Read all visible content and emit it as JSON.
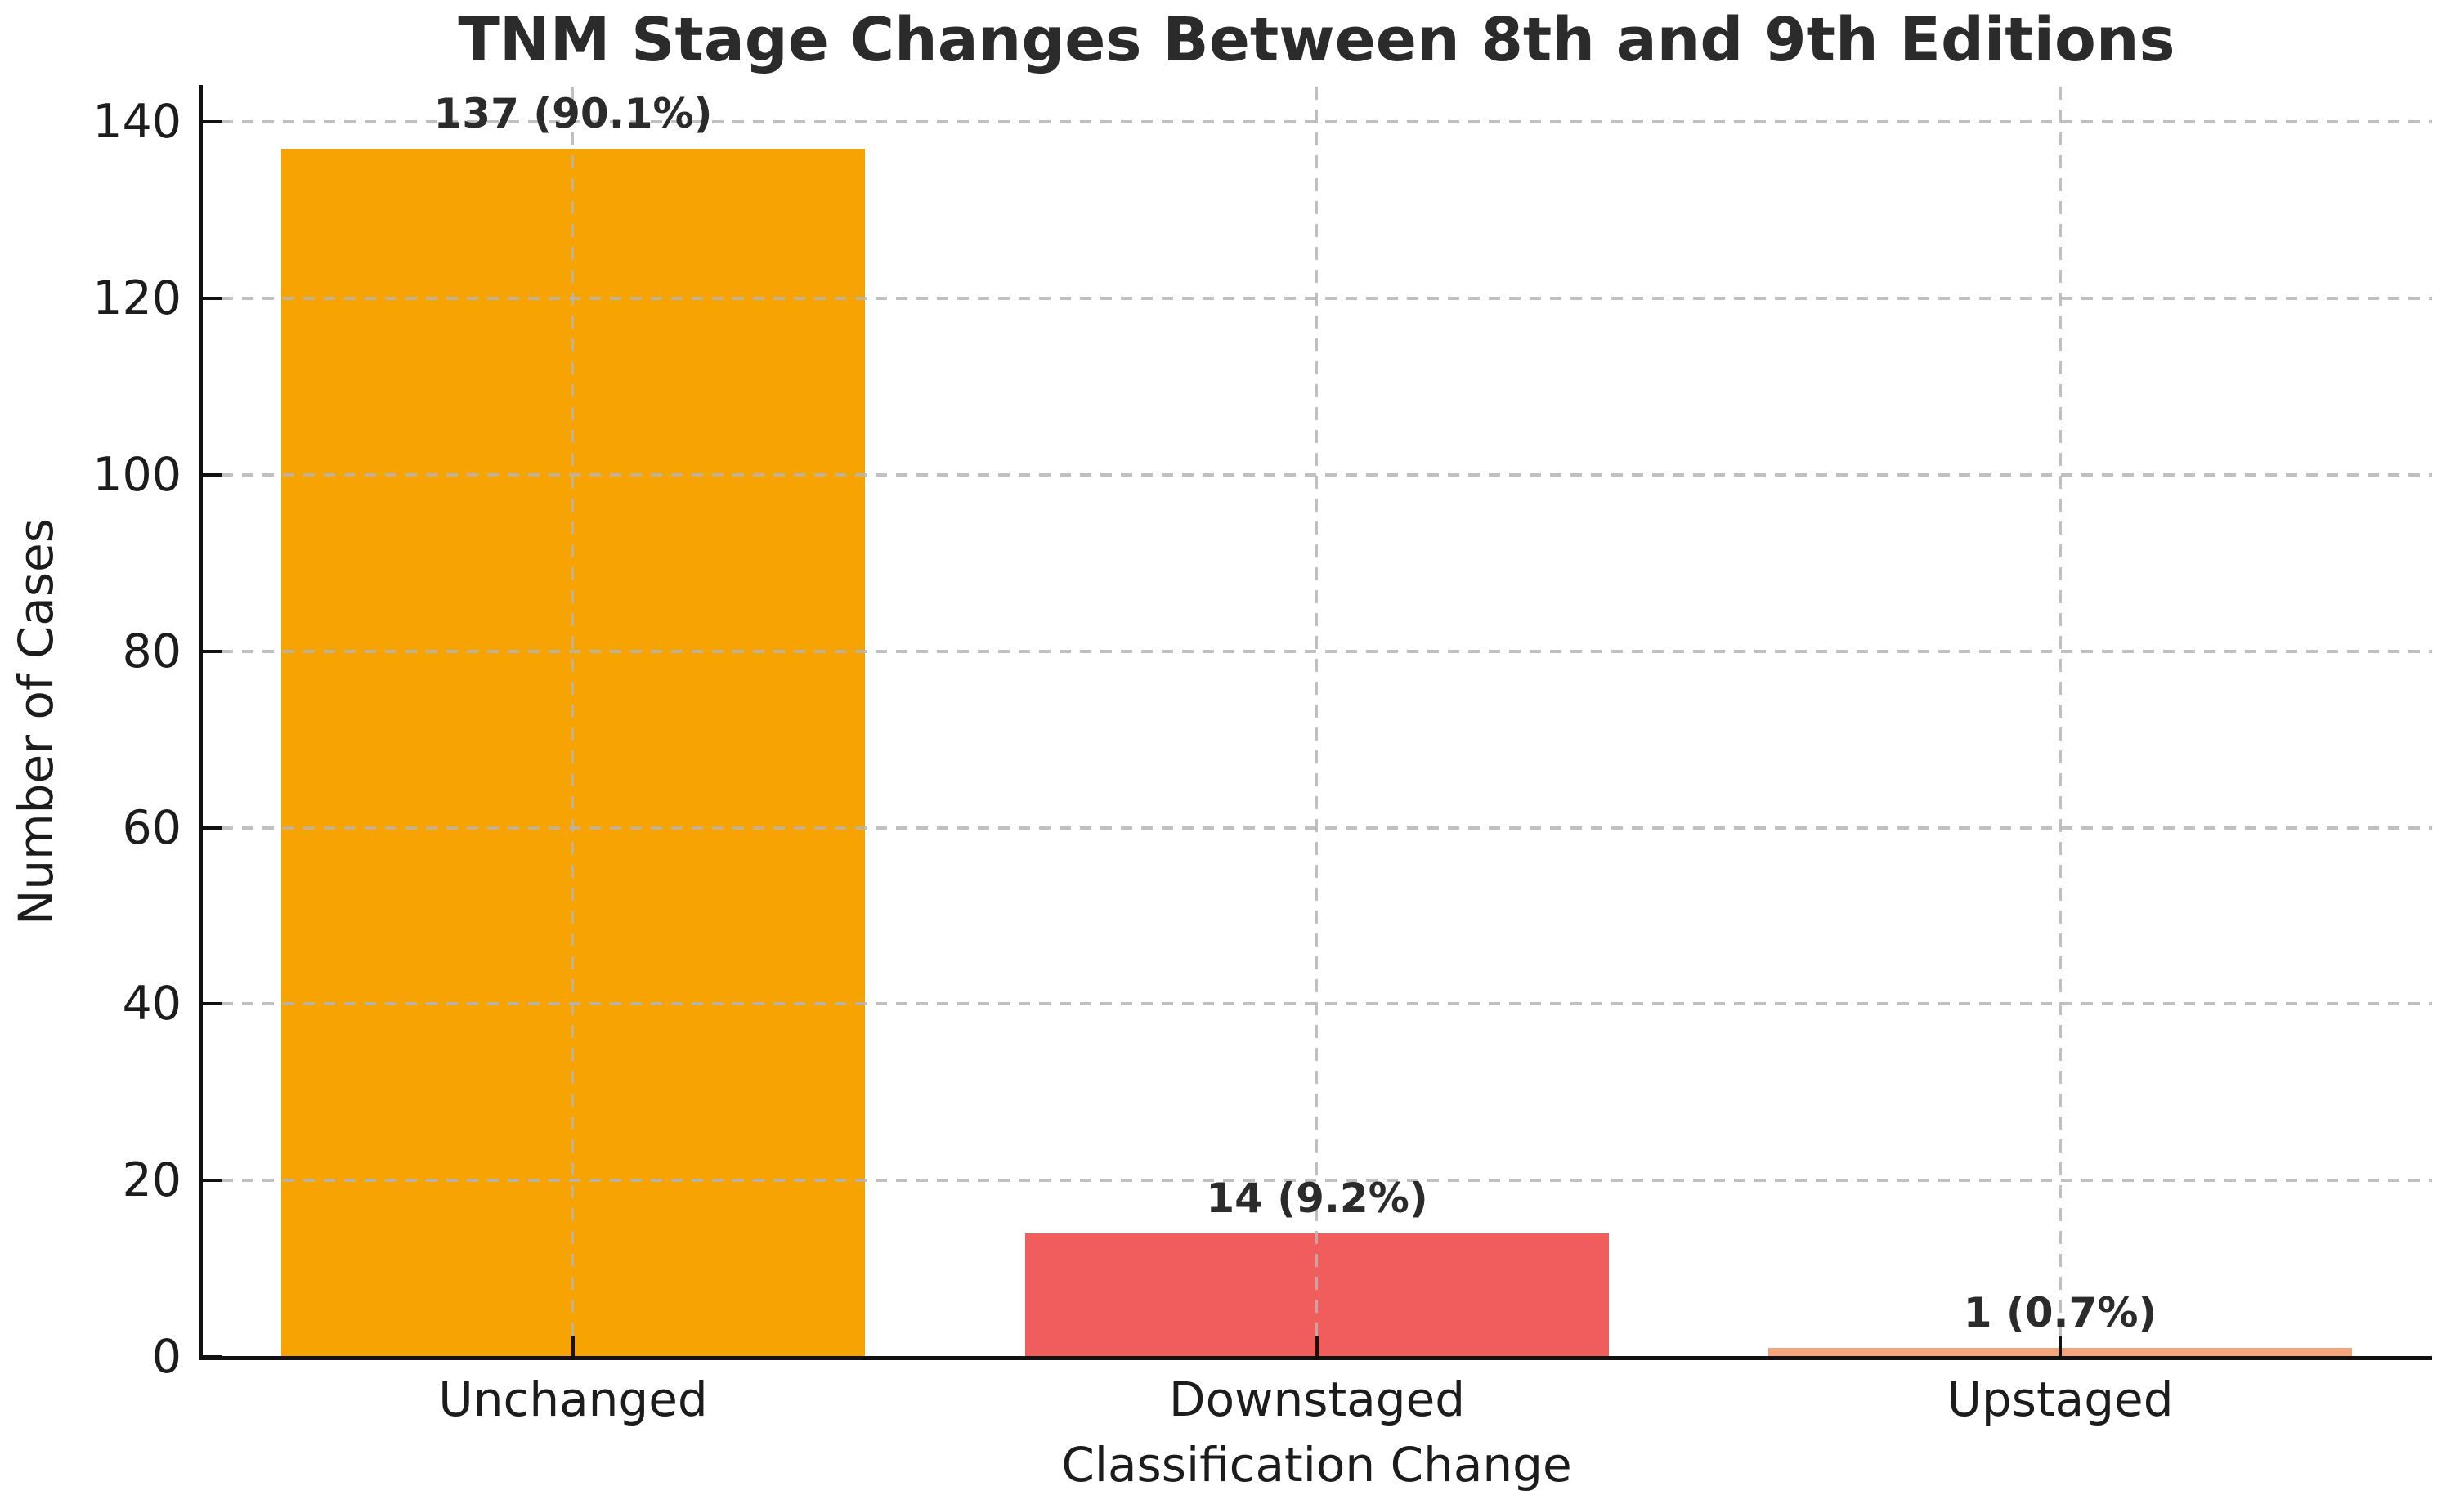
{
  "chart_data": {
    "type": "bar",
    "title": "TNM Stage Changes Between 8th and 9th Editions",
    "xlabel": "Classification Change",
    "ylabel": "Number of Cases",
    "categories": [
      "Unchanged",
      "Downstaged",
      "Upstaged"
    ],
    "values": [
      137,
      14,
      1
    ],
    "percentages": [
      90.1,
      9.2,
      0.7
    ],
    "bar_labels": [
      "137 (90.1%)",
      "14 (9.2%)",
      "1 (0.7%)"
    ],
    "bar_colors": [
      "#F7A402",
      "#F15C5C",
      "#F5A47C"
    ],
    "yticks": [
      0,
      20,
      40,
      60,
      80,
      100,
      120,
      140
    ],
    "ylim": [
      0,
      144
    ],
    "bar_width_fraction": 0.785,
    "grid": {
      "horizontal": true,
      "vertical": true,
      "style": "dashed",
      "color": "#B5B5B5"
    },
    "legend": "none",
    "axis_color": "#111111",
    "tick_label_color": "#1c1c1c",
    "title_color": "#2b2b2b",
    "value_label_color": "#2b2b2b",
    "background_color": "#FFFFFF"
  }
}
